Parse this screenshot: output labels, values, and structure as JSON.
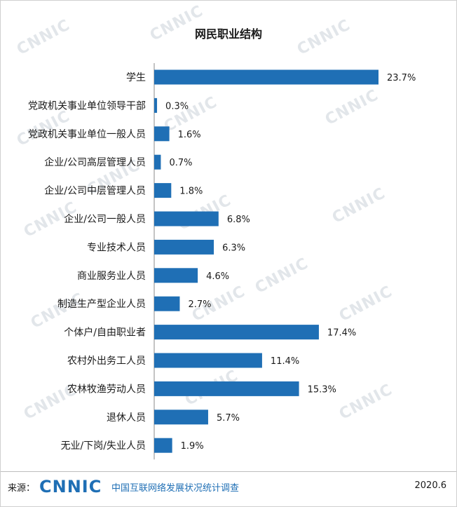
{
  "watermark_text": "CNNIC",
  "footer": {
    "source_label": "来源：",
    "logo_text": "CNNIC",
    "source_name": "中国互联网络发展状况统计调查",
    "date": "2020.6"
  },
  "colors": {
    "bar": "#1f6fb5",
    "logo": "#1f6fb5",
    "watermark": "#e2e6ea"
  },
  "chart_data": {
    "type": "bar",
    "orientation": "horizontal",
    "title": "网民职业结构",
    "xlabel": "",
    "ylabel": "",
    "unit": "%",
    "xlim": [
      0,
      23.7
    ],
    "grid": false,
    "legend": "none",
    "categories": [
      "学生",
      "党政机关事业单位领导干部",
      "党政机关事业单位一般人员",
      "企业/公司高层管理人员",
      "企业/公司中层管理人员",
      "企业/公司一般人员",
      "专业技术人员",
      "商业服务业人员",
      "制造生产型企业人员",
      "个体户/自由职业者",
      "农村外出务工人员",
      "农林牧渔劳动人员",
      "退休人员",
      "无业/下岗/失业人员"
    ],
    "values": [
      23.7,
      0.3,
      1.6,
      0.7,
      1.8,
      6.8,
      6.3,
      4.6,
      2.7,
      17.4,
      11.4,
      15.3,
      5.7,
      1.9
    ],
    "value_labels": [
      "23.7%",
      "0.3%",
      "1.6%",
      "0.7%",
      "1.8%",
      "6.8%",
      "6.3%",
      "4.6%",
      "2.7%",
      "17.4%",
      "11.4%",
      "15.3%",
      "5.7%",
      "1.9%"
    ]
  }
}
